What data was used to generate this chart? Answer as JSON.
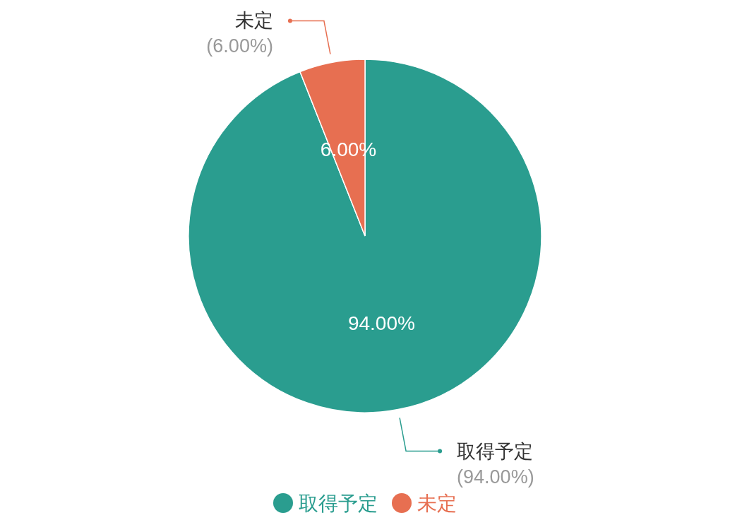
{
  "chart_data": {
    "type": "pie",
    "categories": [
      "取得予定",
      "未定"
    ],
    "values": [
      94,
      6
    ],
    "colors": [
      "#2a9d8f",
      "#e76f51"
    ],
    "value_labels": [
      "94.00%",
      "6.00%"
    ],
    "annotations": [
      "(94.00%)",
      "(6.00%)"
    ],
    "legend": "bottom"
  }
}
